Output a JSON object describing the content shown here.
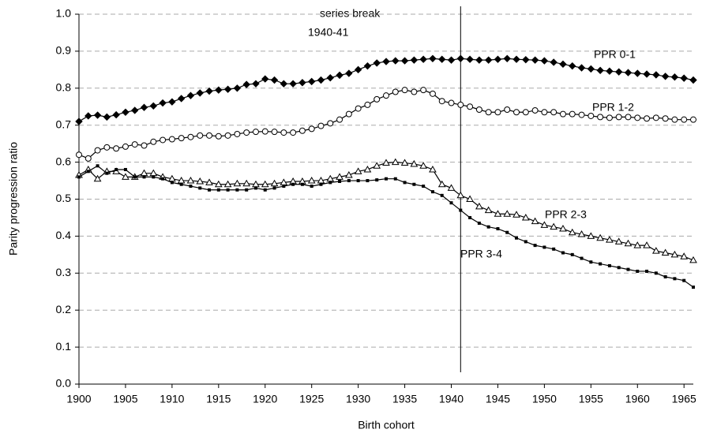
{
  "chart_data": {
    "type": "line",
    "xlabel": "Birth cohort",
    "ylabel": "Parity progression ratio",
    "annotation": {
      "lines": [
        "series break",
        "1940-41"
      ],
      "x": 1941
    },
    "x": [
      1900,
      1901,
      1902,
      1903,
      1904,
      1905,
      1906,
      1907,
      1908,
      1909,
      1910,
      1911,
      1912,
      1913,
      1914,
      1915,
      1916,
      1917,
      1918,
      1919,
      1920,
      1921,
      1922,
      1923,
      1924,
      1925,
      1926,
      1927,
      1928,
      1929,
      1930,
      1931,
      1932,
      1933,
      1934,
      1935,
      1936,
      1937,
      1938,
      1939,
      1940,
      1941,
      1942,
      1943,
      1944,
      1945,
      1946,
      1947,
      1948,
      1949,
      1950,
      1951,
      1952,
      1953,
      1954,
      1955,
      1956,
      1957,
      1958,
      1959,
      1960,
      1961,
      1962,
      1963,
      1964,
      1965,
      1966
    ],
    "series": [
      {
        "name": "PPR 0-1",
        "color": "#000000",
        "marker": "diamond",
        "values": [
          0.71,
          0.725,
          0.727,
          0.722,
          0.728,
          0.735,
          0.74,
          0.748,
          0.752,
          0.76,
          0.763,
          0.772,
          0.78,
          0.787,
          0.792,
          0.795,
          0.797,
          0.8,
          0.81,
          0.812,
          0.825,
          0.822,
          0.812,
          0.812,
          0.815,
          0.818,
          0.822,
          0.828,
          0.835,
          0.84,
          0.85,
          0.86,
          0.868,
          0.872,
          0.874,
          0.874,
          0.876,
          0.878,
          0.88,
          0.878,
          0.876,
          0.88,
          0.878,
          0.876,
          0.876,
          0.878,
          0.88,
          0.878,
          0.877,
          0.876,
          0.874,
          0.87,
          0.865,
          0.86,
          0.855,
          0.852,
          0.848,
          0.846,
          0.844,
          0.842,
          0.84,
          0.838,
          0.836,
          0.832,
          0.83,
          0.827,
          0.822
        ]
      },
      {
        "name": "PPR 1-2",
        "color": "#000000",
        "marker": "circle",
        "values": [
          0.62,
          0.61,
          0.632,
          0.64,
          0.637,
          0.642,
          0.648,
          0.645,
          0.655,
          0.66,
          0.662,
          0.665,
          0.668,
          0.672,
          0.672,
          0.67,
          0.672,
          0.676,
          0.68,
          0.682,
          0.683,
          0.682,
          0.68,
          0.68,
          0.685,
          0.69,
          0.698,
          0.705,
          0.715,
          0.73,
          0.745,
          0.755,
          0.77,
          0.78,
          0.79,
          0.795,
          0.79,
          0.795,
          0.785,
          0.765,
          0.76,
          0.755,
          0.75,
          0.742,
          0.735,
          0.735,
          0.742,
          0.735,
          0.735,
          0.74,
          0.735,
          0.735,
          0.73,
          0.73,
          0.728,
          0.725,
          0.722,
          0.72,
          0.722,
          0.722,
          0.72,
          0.718,
          0.72,
          0.718,
          0.715,
          0.715,
          0.715
        ]
      },
      {
        "name": "PPR 2-3",
        "color": "#000000",
        "marker": "triangle",
        "values": [
          0.565,
          0.58,
          0.555,
          0.575,
          0.575,
          0.56,
          0.56,
          0.57,
          0.57,
          0.56,
          0.555,
          0.55,
          0.55,
          0.548,
          0.545,
          0.54,
          0.54,
          0.542,
          0.542,
          0.54,
          0.54,
          0.542,
          0.545,
          0.548,
          0.548,
          0.55,
          0.55,
          0.555,
          0.56,
          0.565,
          0.575,
          0.58,
          0.59,
          0.598,
          0.6,
          0.598,
          0.595,
          0.59,
          0.58,
          0.54,
          0.53,
          0.51,
          0.5,
          0.48,
          0.47,
          0.46,
          0.46,
          0.458,
          0.45,
          0.44,
          0.43,
          0.425,
          0.42,
          0.41,
          0.405,
          0.4,
          0.395,
          0.39,
          0.385,
          0.38,
          0.375,
          0.375,
          0.36,
          0.355,
          0.35,
          0.345,
          0.335
        ]
      },
      {
        "name": "PPR 3-4",
        "color": "#000000",
        "marker": "square",
        "values": [
          0.56,
          0.575,
          0.59,
          0.57,
          0.58,
          0.58,
          0.56,
          0.56,
          0.56,
          0.555,
          0.545,
          0.54,
          0.535,
          0.53,
          0.525,
          0.525,
          0.525,
          0.525,
          0.525,
          0.53,
          0.525,
          0.53,
          0.535,
          0.54,
          0.54,
          0.535,
          0.54,
          0.545,
          0.548,
          0.55,
          0.55,
          0.55,
          0.552,
          0.555,
          0.555,
          0.545,
          0.54,
          0.535,
          0.52,
          0.51,
          0.49,
          0.47,
          0.45,
          0.435,
          0.425,
          0.42,
          0.41,
          0.395,
          0.385,
          0.375,
          0.37,
          0.365,
          0.355,
          0.35,
          0.34,
          0.33,
          0.325,
          0.32,
          0.315,
          0.31,
          0.305,
          0.305,
          0.3,
          0.29,
          0.285,
          0.28,
          0.262
        ]
      }
    ],
    "xlim": [
      1900,
      1966
    ],
    "xticks": [
      1900,
      1905,
      1910,
      1915,
      1920,
      1925,
      1930,
      1935,
      1940,
      1945,
      1950,
      1955,
      1960,
      1965
    ],
    "ylim": [
      0,
      1
    ],
    "yticks": [
      {
        "value": 0,
        "label": "0.0"
      },
      0.1,
      0.2,
      0.3,
      0.4,
      0.5,
      0.6,
      0.7,
      0.8,
      0.9,
      {
        "value": 1,
        "label": "1.0"
      }
    ],
    "grid": true
  }
}
